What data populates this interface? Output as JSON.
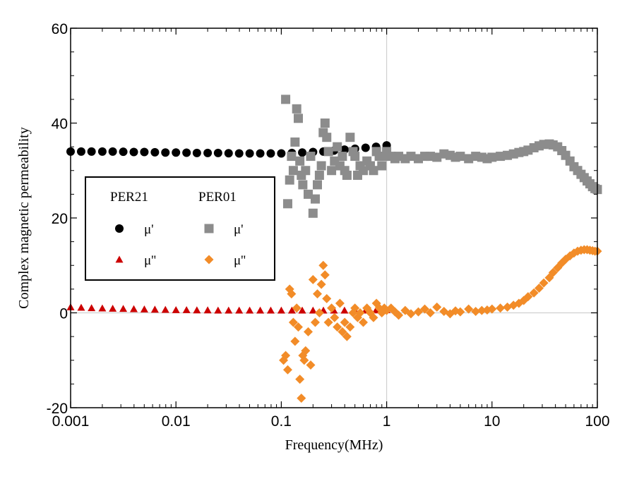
{
  "chart_data": {
    "type": "scatter",
    "xlabel": "Frequency(MHz)",
    "ylabel": "Complex magnetic permeability",
    "x_scale": "log",
    "xlim": [
      0.001,
      100
    ],
    "ylim": [
      -20,
      60
    ],
    "x_ticks": [
      "0.001",
      "0.01",
      "0.1",
      "1",
      "10",
      "100"
    ],
    "y_ticks": [
      "-20",
      "0",
      "20",
      "40",
      "60"
    ],
    "reference_lines": {
      "x": 1,
      "y": 0
    },
    "legend": {
      "placement": "center-left",
      "groups": [
        "PER21",
        "PER01"
      ],
      "entries": [
        {
          "group": "PER21",
          "label": "μ'",
          "series": 0
        },
        {
          "group": "PER01",
          "label": "μ'",
          "series": 2
        },
        {
          "group": "PER21",
          "label": "μ''",
          "series": 1
        },
        {
          "group": "PER01",
          "label": "μ''",
          "series": 3
        }
      ]
    },
    "series": [
      {
        "name": "PER21 μ'",
        "marker": "circle",
        "color": "#000000",
        "x": [
          0.001,
          0.00126,
          0.00158,
          0.002,
          0.00251,
          0.00316,
          0.00398,
          0.00501,
          0.00631,
          0.00794,
          0.01,
          0.0126,
          0.0158,
          0.02,
          0.0251,
          0.0316,
          0.0398,
          0.0501,
          0.0631,
          0.0794,
          0.1,
          0.126,
          0.158,
          0.2,
          0.251,
          0.316,
          0.398,
          0.501,
          0.631,
          0.794,
          1.0
        ],
        "y": [
          34.0,
          34.0,
          34.0,
          34.0,
          34.0,
          33.95,
          33.9,
          33.9,
          33.85,
          33.8,
          33.8,
          33.75,
          33.7,
          33.7,
          33.7,
          33.65,
          33.6,
          33.6,
          33.6,
          33.6,
          33.6,
          33.7,
          33.8,
          33.9,
          34.0,
          34.2,
          34.4,
          34.6,
          34.8,
          35.0,
          35.3
        ]
      },
      {
        "name": "PER21 μ''",
        "marker": "triangle",
        "color": "#cc0000",
        "x": [
          0.001,
          0.00126,
          0.00158,
          0.002,
          0.00251,
          0.00316,
          0.00398,
          0.00501,
          0.00631,
          0.00794,
          0.01,
          0.0126,
          0.0158,
          0.02,
          0.0251,
          0.0316,
          0.0398,
          0.0501,
          0.0631,
          0.0794,
          0.1,
          0.126,
          0.158,
          0.2,
          0.251,
          0.316,
          0.398,
          0.501,
          0.631,
          0.794,
          1.0
        ],
        "y": [
          1.2,
          1.1,
          1.0,
          0.95,
          0.9,
          0.85,
          0.8,
          0.75,
          0.7,
          0.65,
          0.6,
          0.6,
          0.55,
          0.55,
          0.5,
          0.5,
          0.5,
          0.5,
          0.5,
          0.5,
          0.5,
          0.5,
          0.5,
          0.5,
          0.5,
          0.5,
          0.5,
          0.5,
          0.5,
          0.55,
          0.6
        ]
      },
      {
        "name": "PER01 μ'",
        "marker": "square",
        "color": "#8c8c8c",
        "x": [
          0.11,
          0.115,
          0.12,
          0.125,
          0.13,
          0.135,
          0.14,
          0.145,
          0.15,
          0.155,
          0.16,
          0.17,
          0.18,
          0.19,
          0.2,
          0.21,
          0.22,
          0.23,
          0.24,
          0.25,
          0.26,
          0.27,
          0.28,
          0.3,
          0.32,
          0.34,
          0.36,
          0.38,
          0.4,
          0.42,
          0.45,
          0.48,
          0.5,
          0.53,
          0.56,
          0.6,
          0.65,
          0.7,
          0.75,
          0.8,
          0.85,
          0.9,
          0.95,
          1.0,
          1.1,
          1.2,
          1.3,
          1.5,
          1.7,
          2.0,
          2.3,
          2.6,
          3.0,
          3.5,
          4.0,
          4.5,
          5.0,
          6.0,
          7.0,
          8.0,
          9.0,
          10.0,
          12.0,
          14.0,
          16.0,
          18.0,
          20.0,
          22.0,
          25.0,
          28.0,
          31.0,
          35.0,
          38.0,
          42.0,
          46.0,
          50.0,
          55.0,
          60.0,
          65.0,
          70.0,
          75.0,
          80.0,
          85.0,
          90.0,
          95.0,
          100.0
        ],
        "y": [
          45,
          23,
          28,
          33,
          30,
          36,
          43,
          41,
          32,
          29,
          27,
          30,
          25,
          33,
          21,
          24,
          27,
          29,
          31,
          38,
          40,
          37,
          34,
          30,
          32,
          35,
          31,
          33,
          30,
          29,
          37,
          34,
          33,
          29,
          31,
          30,
          32,
          31,
          30,
          34,
          33,
          31,
          33,
          34,
          33,
          32.5,
          33,
          32.5,
          33,
          32.5,
          33,
          33,
          32.8,
          33.5,
          33.2,
          32.8,
          33,
          32.5,
          33,
          32.8,
          32.5,
          32.8,
          33,
          33.2,
          33.5,
          33.8,
          34,
          34.3,
          34.8,
          35.2,
          35.5,
          35.6,
          35.4,
          35,
          34.2,
          33.2,
          32,
          30.8,
          30,
          29.2,
          28.5,
          27.8,
          27.2,
          26.6,
          26.2,
          26
        ]
      },
      {
        "name": "PER01 μ''",
        "marker": "diamond",
        "color": "#f28c28",
        "x": [
          0.105,
          0.11,
          0.115,
          0.12,
          0.125,
          0.13,
          0.135,
          0.14,
          0.145,
          0.15,
          0.155,
          0.16,
          0.165,
          0.17,
          0.18,
          0.19,
          0.2,
          0.21,
          0.22,
          0.23,
          0.24,
          0.25,
          0.26,
          0.27,
          0.28,
          0.3,
          0.32,
          0.34,
          0.36,
          0.38,
          0.4,
          0.42,
          0.45,
          0.48,
          0.5,
          0.53,
          0.56,
          0.6,
          0.65,
          0.7,
          0.75,
          0.8,
          0.85,
          0.9,
          0.95,
          1.0,
          1.1,
          1.2,
          1.3,
          1.5,
          1.7,
          2.0,
          2.3,
          2.6,
          3.0,
          3.5,
          4.0,
          4.5,
          5.0,
          6.0,
          7.0,
          8.0,
          9.0,
          10.0,
          12.0,
          14.0,
          16.0,
          18.0,
          20.0,
          22.0,
          25.0,
          28.0,
          31.0,
          35.0,
          38.0,
          42.0,
          46.0,
          50.0,
          55.0,
          60.0,
          65.0,
          70.0,
          75.0,
          80.0,
          85.0,
          90.0,
          95.0,
          100.0
        ],
        "y": [
          -10,
          -9,
          -12,
          5,
          4,
          -2,
          -6,
          1,
          -3,
          -14,
          -18,
          -9,
          -10,
          -8,
          -4,
          -11,
          7,
          -2,
          4,
          0,
          6,
          10,
          8,
          3,
          -2,
          1,
          -1,
          -3,
          2,
          -4,
          -2,
          -5,
          -3,
          0,
          1,
          -1,
          0,
          -2,
          1,
          0,
          -1,
          2,
          1,
          0,
          1,
          0.5,
          1,
          0.2,
          -0.5,
          0.5,
          -0.2,
          0.2,
          0.8,
          0,
          1.2,
          0.3,
          -0.2,
          0.4,
          0.2,
          0.8,
          0.3,
          0.5,
          0.6,
          0.8,
          1.0,
          1.2,
          1.6,
          2.0,
          2.6,
          3.4,
          4.2,
          5.2,
          6.3,
          7.4,
          8.5,
          9.5,
          10.5,
          11.3,
          12.0,
          12.6,
          13.0,
          13.2,
          13.3,
          13.3,
          13.2,
          13.1,
          13.0,
          13.0
        ]
      }
    ]
  }
}
